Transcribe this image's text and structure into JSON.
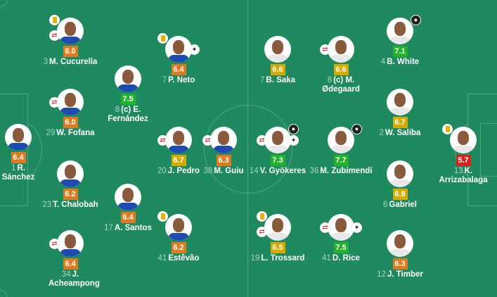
{
  "rating_colors": {
    "low": "#e07a1f",
    "mid": "#d7aa00",
    "high": "#21b32a",
    "bad": "#d8231c"
  },
  "teams": [
    {
      "side": "home",
      "shirt_color": "#1e4bb0",
      "players": [
        {
          "number": "3",
          "name": "M. Cucurella",
          "rating": "6.0",
          "icons": [
            "yellow-card",
            "substitution"
          ]
        },
        {
          "number": "7",
          "name": "P. Neto",
          "rating": "6.4",
          "icons": [
            "yellow-card",
            "boot"
          ]
        },
        {
          "number": "8",
          "name": "(c) E. Fernández",
          "rating": "7.5",
          "icons": []
        },
        {
          "number": "29",
          "name": "W. Fofana",
          "rating": "6.0",
          "icons": [
            "substitution"
          ]
        },
        {
          "number": "1",
          "name": "R. Sánchez",
          "rating": "6.4",
          "icons": []
        },
        {
          "number": "20",
          "name": "J. Pedro",
          "rating": "6.7",
          "icons": [
            "substitution"
          ]
        },
        {
          "number": "38",
          "name": "M. Guiu",
          "rating": "6.3",
          "icons": [
            "substitution"
          ]
        },
        {
          "number": "23",
          "name": "T. Chalobah",
          "rating": "6.2",
          "icons": []
        },
        {
          "number": "17",
          "name": "A. Santos",
          "rating": "6.4",
          "icons": []
        },
        {
          "number": "41",
          "name": "Estêvão",
          "rating": "6.2",
          "icons": [
            "yellow-card"
          ]
        },
        {
          "number": "34",
          "name": "J. Acheampong",
          "rating": "6.4",
          "icons": [
            "substitution"
          ]
        }
      ]
    },
    {
      "side": "away",
      "shirt_color": "#e8e8e8",
      "players": [
        {
          "number": "7",
          "name": "B. Saka",
          "rating": "6.6",
          "icons": []
        },
        {
          "number": "8",
          "name": "(c) M. Ødegaard",
          "rating": "6.6",
          "icons": [
            "substitution"
          ]
        },
        {
          "number": "4",
          "name": "B. White",
          "rating": "7.1",
          "icons": [
            "goal"
          ]
        },
        {
          "number": "2",
          "name": "W. Saliba",
          "rating": "6.7",
          "icons": []
        },
        {
          "number": "14",
          "name": "V. Gyökeres",
          "rating": "7.3",
          "icons": [
            "substitution",
            "goal",
            "boot"
          ]
        },
        {
          "number": "36",
          "name": "M. Zubimendi",
          "rating": "7.7",
          "icons": [
            "goal"
          ]
        },
        {
          "number": "13",
          "name": "K. Arrizabalaga",
          "rating": "5.7",
          "icons": [
            "yellow-card"
          ]
        },
        {
          "number": "6",
          "name": "Gabriel",
          "rating": "6.8",
          "icons": []
        },
        {
          "number": "19",
          "name": "L. Trossard",
          "rating": "6.5",
          "icons": [
            "yellow-card",
            "substitution"
          ]
        },
        {
          "number": "41",
          "name": "D. Rice",
          "rating": "7.5",
          "icons": [
            "substitution",
            "boot"
          ]
        },
        {
          "number": "12",
          "name": "J. Timber",
          "rating": "6.3",
          "icons": []
        }
      ]
    }
  ]
}
